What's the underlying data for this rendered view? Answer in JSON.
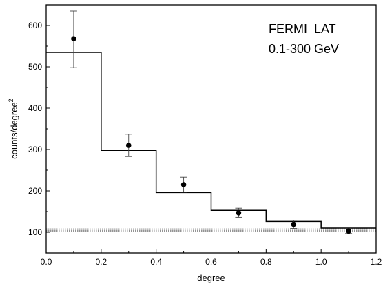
{
  "chart_data": {
    "type": "scatter",
    "title": "",
    "xlabel": "degree",
    "ylabel": "counts/degree",
    "ylabel_superscript": "2",
    "xlim": [
      0.0,
      1.2
    ],
    "ylim": [
      50,
      650
    ],
    "x_ticks": [
      "0.0",
      "0.2",
      "0.4",
      "0.6",
      "0.8",
      "1.0",
      "1.2"
    ],
    "y_ticks": [
      "100",
      "200",
      "300",
      "400",
      "500",
      "600"
    ],
    "annotations": [
      "FERMI  LAT",
      "0.1-300 GeV"
    ],
    "grid": false,
    "legend": "none",
    "series": [
      {
        "type": "scatter",
        "x": [
          0.1,
          0.3,
          0.5,
          0.7,
          0.9,
          1.1
        ],
        "y": [
          568,
          310,
          215,
          147,
          119,
          103
        ],
        "yerr": [
          [
            70,
            67
          ],
          [
            27,
            27
          ],
          [
            18,
            18
          ],
          [
            11,
            11
          ],
          [
            10,
            10
          ],
          [
            6,
            6
          ]
        ]
      },
      {
        "type": "step",
        "edges": [
          0.0,
          0.2,
          0.4,
          0.6,
          0.8,
          1.0,
          1.2
        ],
        "values": [
          535,
          298,
          196,
          153,
          126,
          110
        ]
      },
      {
        "type": "hline",
        "y": [
          103,
          105,
          108
        ],
        "style": "dotted"
      }
    ]
  }
}
